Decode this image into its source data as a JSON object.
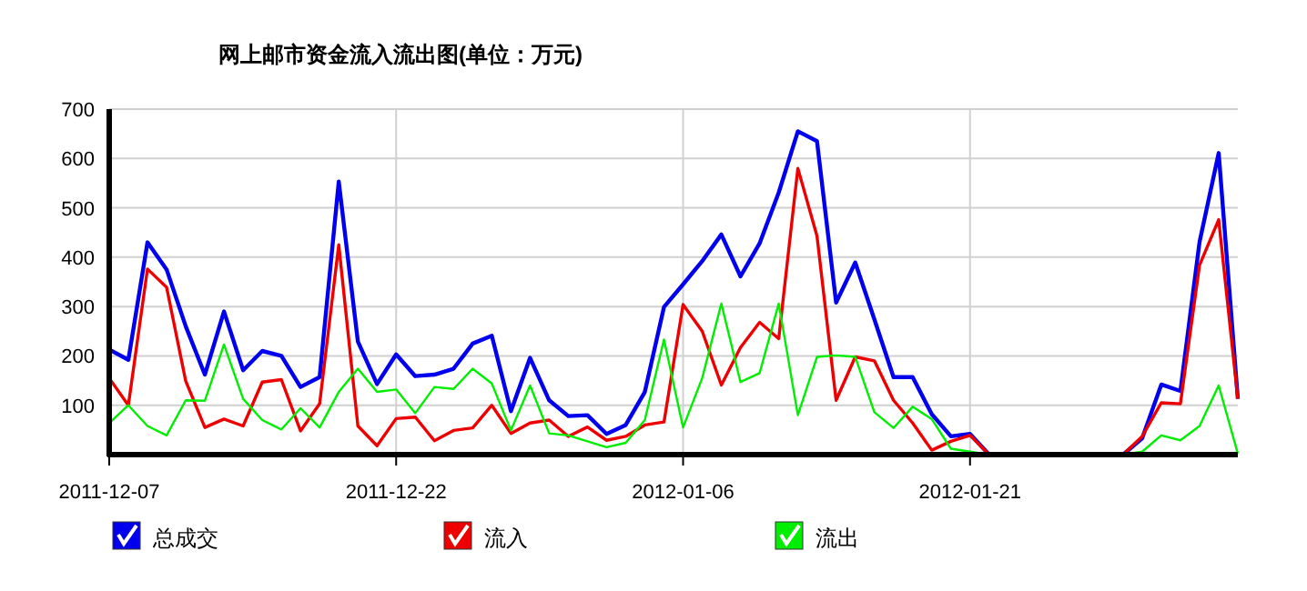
{
  "chart_data": {
    "type": "line",
    "title": "网上邮市资金流入流出图(单位：万元)",
    "x": [
      "2011-12-07",
      "2011-12-08",
      "2011-12-09",
      "2011-12-10",
      "2011-12-11",
      "2011-12-12",
      "2011-12-13",
      "2011-12-14",
      "2011-12-15",
      "2011-12-16",
      "2011-12-17",
      "2011-12-18",
      "2011-12-19",
      "2011-12-20",
      "2011-12-21",
      "2011-12-22",
      "2011-12-23",
      "2011-12-24",
      "2011-12-25",
      "2011-12-26",
      "2011-12-27",
      "2011-12-28",
      "2011-12-29",
      "2011-12-30",
      "2011-12-31",
      "2012-01-01",
      "2012-01-02",
      "2012-01-03",
      "2012-01-04",
      "2012-01-05",
      "2012-01-06",
      "2012-01-07",
      "2012-01-08",
      "2012-01-09",
      "2012-01-10",
      "2012-01-11",
      "2012-01-12",
      "2012-01-13",
      "2012-01-14",
      "2012-01-15",
      "2012-01-16",
      "2012-01-17",
      "2012-01-18",
      "2012-01-19",
      "2012-01-20",
      "2012-01-21",
      "2012-01-22",
      "2012-01-23",
      "2012-01-24",
      "2012-01-25",
      "2012-01-26",
      "2012-01-27",
      "2012-01-28",
      "2012-01-29",
      "2012-01-30",
      "2012-01-31",
      "2012-02-01",
      "2012-02-02",
      "2012-02-03",
      "2012-02-04"
    ],
    "series": [
      {
        "name": "总成交",
        "color": "#0000ee",
        "values": [
          213,
          192,
          430,
          375,
          260,
          162,
          290,
          171,
          210,
          200,
          137,
          157,
          553,
          229,
          143,
          203,
          159,
          162,
          174,
          225,
          241,
          88,
          196,
          110,
          78,
          80,
          42,
          60,
          127,
          299,
          345,
          392,
          446,
          361,
          428,
          531,
          655,
          635,
          308,
          389,
          274,
          157,
          157,
          82,
          37,
          42,
          0,
          0,
          0,
          0,
          0,
          0,
          0,
          0,
          33,
          142,
          129,
          431,
          611,
          113
        ]
      },
      {
        "name": "流入",
        "color": "#ee0000",
        "values": [
          155,
          100,
          376,
          339,
          149,
          55,
          72,
          58,
          147,
          152,
          48,
          103,
          425,
          58,
          18,
          73,
          76,
          28,
          49,
          54,
          100,
          43,
          64,
          70,
          37,
          56,
          29,
          37,
          60,
          66,
          304,
          250,
          141,
          217,
          268,
          235,
          580,
          443,
          110,
          198,
          190,
          110,
          64,
          9,
          27,
          39,
          0,
          0,
          0,
          0,
          0,
          0,
          0,
          0,
          37,
          105,
          103,
          384,
          476,
          113
        ]
      },
      {
        "name": "流出",
        "color": "#00ee00",
        "values": [
          64,
          100,
          58,
          39,
          110,
          109,
          223,
          113,
          70,
          51,
          94,
          55,
          127,
          174,
          127,
          132,
          84,
          137,
          133,
          174,
          144,
          49,
          140,
          43,
          39,
          27,
          15,
          24,
          70,
          233,
          55,
          155,
          306,
          147,
          165,
          306,
          80,
          198,
          201,
          198,
          86,
          54,
          97,
          72,
          12,
          6,
          0,
          0,
          0,
          0,
          0,
          0,
          0,
          0,
          6,
          39,
          29,
          58,
          140,
          2
        ]
      }
    ],
    "xlim": [
      "2011-12-07",
      "2012-02-04"
    ],
    "xticks": [
      "2011-12-07",
      "2011-12-22",
      "2012-01-06",
      "2012-01-21"
    ],
    "ylim": [
      0,
      700
    ],
    "yticks": [
      100,
      200,
      300,
      400,
      500,
      600,
      700
    ],
    "grid": true,
    "legend": "bottom"
  }
}
